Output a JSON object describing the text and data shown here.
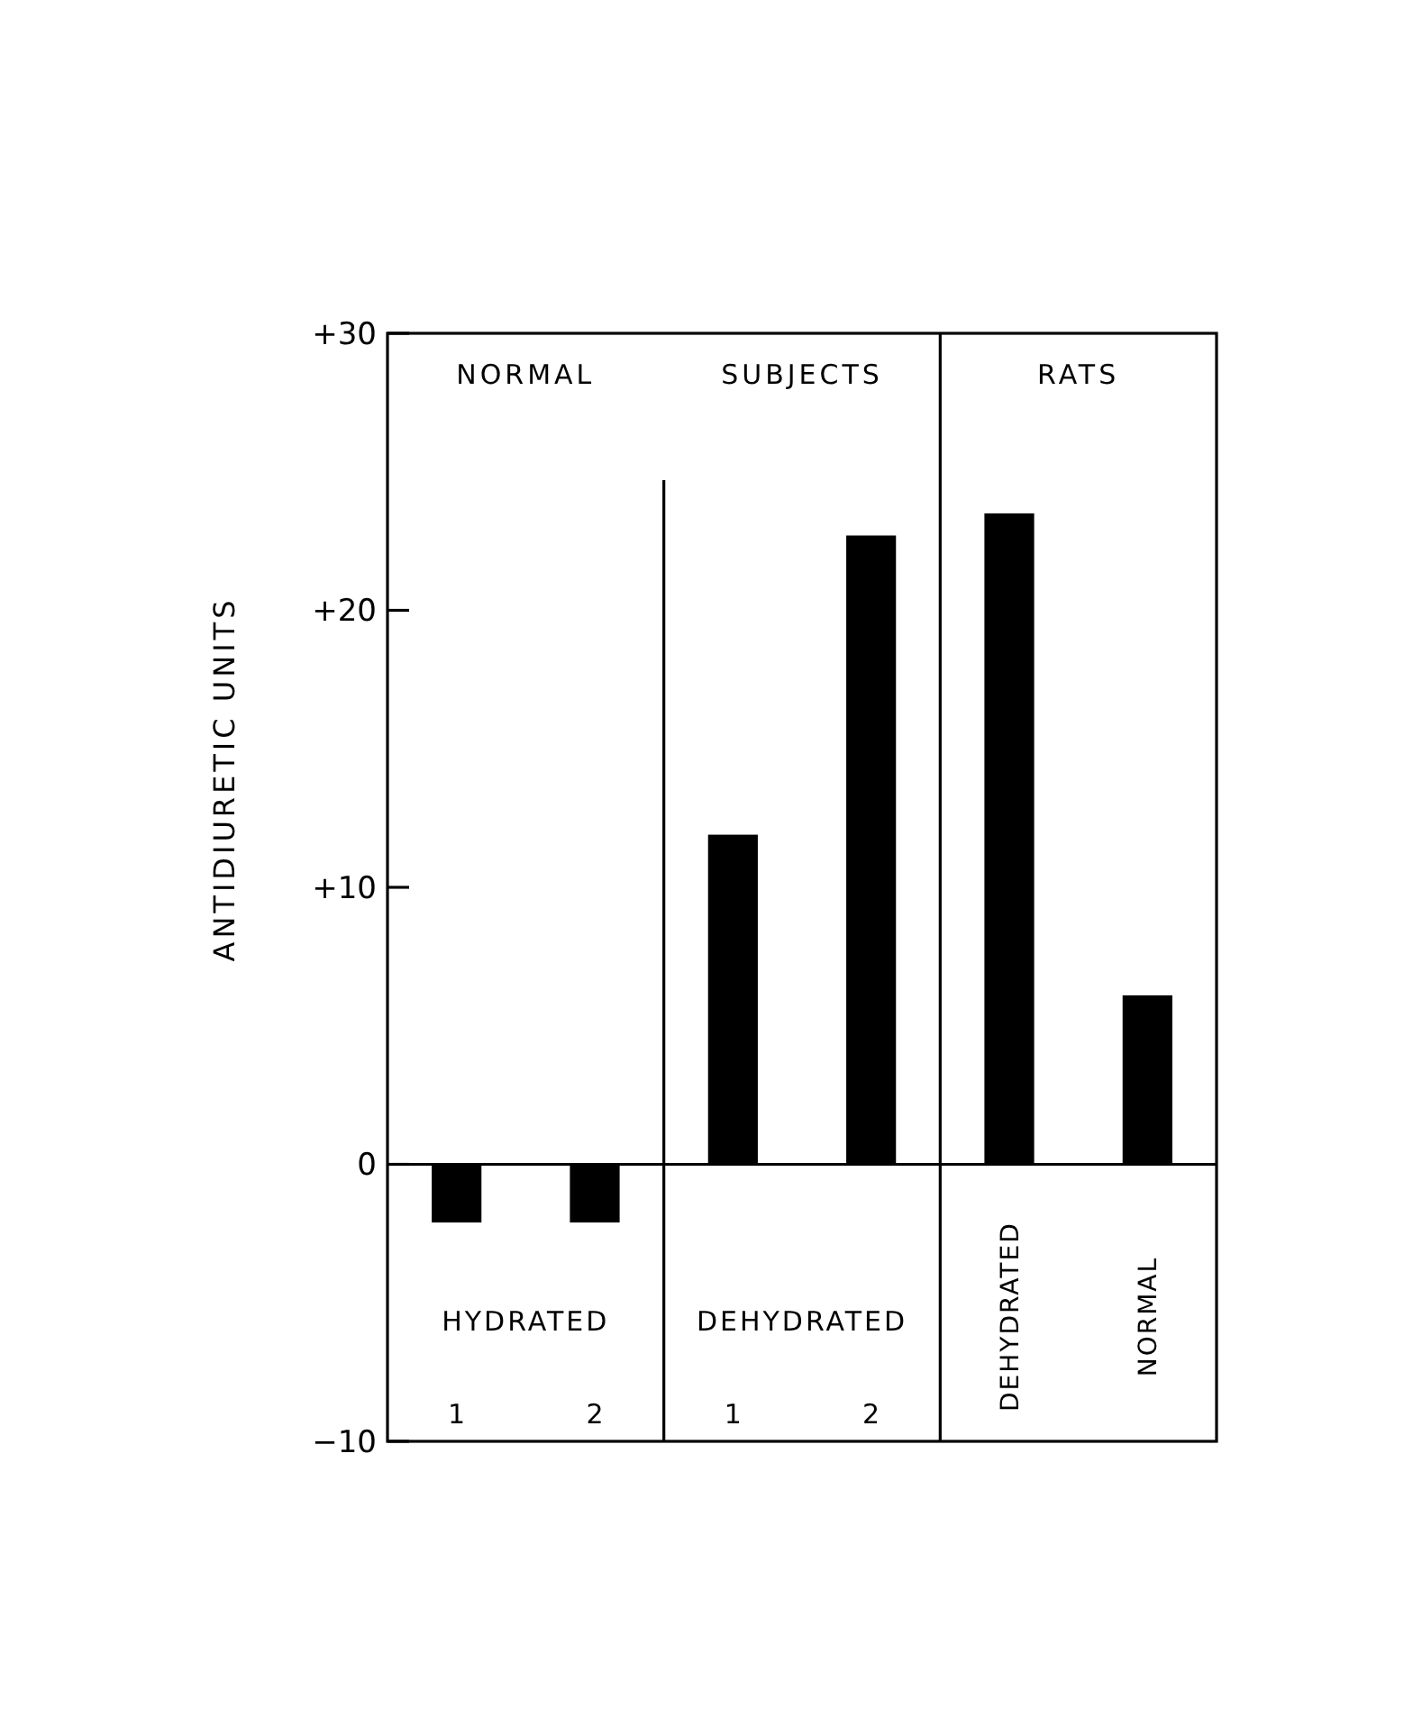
{
  "chart_data": {
    "type": "bar",
    "ylabel": "ANTIDIURETIC UNITS",
    "categories": [
      "1",
      "2",
      "1",
      "2",
      "DEHYDRATED",
      "NORMAL"
    ],
    "values": [
      -2.1,
      -2.1,
      11.9,
      22.7,
      23.5,
      6.1
    ],
    "color": "#000000",
    "ylim": [
      -10,
      30
    ],
    "yticks": [
      {
        "value": 30,
        "label": "+30"
      },
      {
        "value": 20,
        "label": "+20"
      },
      {
        "value": 10,
        "label": "+10"
      },
      0,
      {
        "value": -10,
        "label": "−10"
      }
    ],
    "annotations": [
      "NORMAL",
      "SUBJECTS",
      "RATS",
      "HYDRATED",
      "DEHYDRATED"
    ]
  }
}
